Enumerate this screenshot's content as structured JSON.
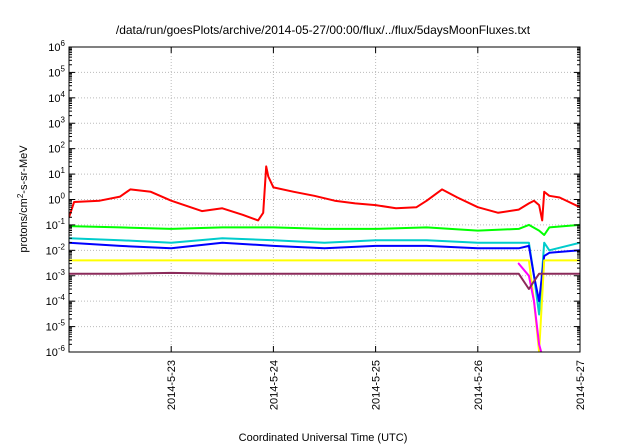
{
  "chart_data": {
    "type": "line",
    "title": "/data/run/goesPlots/archive/2014-05-27/00:00/flux/../flux/5daysMoonFluxes.txt",
    "xlabel": "Coordinated Universal Time (UTC)",
    "ylabel_parts": [
      "protons/cm",
      "2",
      "-s-sr-MeV"
    ],
    "y_scale": "log",
    "ylim": [
      1e-06,
      1000000.0
    ],
    "xlim": [
      "2014-05-22 00:00",
      "2014-05-27 00:00"
    ],
    "x_ticks": [
      "2014-5-23",
      "2014-5-24",
      "2014-5-25",
      "2014-5-26",
      "2014-5-27"
    ],
    "y_ticks": [
      {
        "base": "10",
        "exp": "-6"
      },
      {
        "base": "10",
        "exp": "-5"
      },
      {
        "base": "10",
        "exp": "-4"
      },
      {
        "base": "10",
        "exp": "-3"
      },
      {
        "base": "10",
        "exp": "-2"
      },
      {
        "base": "10",
        "exp": "-1"
      },
      {
        "base": "10",
        "exp": "0"
      },
      {
        "base": "10",
        "exp": "1"
      },
      {
        "base": "10",
        "exp": "2"
      },
      {
        "base": "10",
        "exp": "3"
      },
      {
        "base": "10",
        "exp": "4"
      },
      {
        "base": "10",
        "exp": "5"
      },
      {
        "base": "10",
        "exp": "6"
      }
    ],
    "grid": true,
    "series": [
      {
        "color": "#ff0000",
        "x": [
          0.0,
          0.05,
          0.3,
          0.5,
          0.6,
          0.8,
          1.0,
          1.3,
          1.5,
          1.7,
          1.85,
          1.9,
          1.93,
          1.95,
          2.0,
          2.2,
          2.4,
          2.6,
          2.8,
          3.0,
          3.2,
          3.4,
          3.5,
          3.65,
          3.8,
          4.0,
          4.2,
          4.4,
          4.5,
          4.55,
          4.6,
          4.63,
          4.65,
          4.7,
          4.8,
          5.0
        ],
        "y": [
          0.2,
          0.8,
          0.9,
          1.3,
          2.5,
          2.0,
          0.9,
          0.35,
          0.45,
          0.25,
          0.15,
          0.3,
          20,
          8,
          3.0,
          2.0,
          1.4,
          0.9,
          0.7,
          0.6,
          0.45,
          0.5,
          0.9,
          2.5,
          1.2,
          0.5,
          0.3,
          0.4,
          0.7,
          0.9,
          0.6,
          0.15,
          2.0,
          1.4,
          1.2,
          0.5
        ]
      },
      {
        "color": "#00ff00",
        "x": [
          0.0,
          0.5,
          1.0,
          1.5,
          2.0,
          2.5,
          3.0,
          3.5,
          4.0,
          4.4,
          4.5,
          4.6,
          4.65,
          4.7,
          5.0
        ],
        "y": [
          0.09,
          0.08,
          0.07,
          0.08,
          0.08,
          0.07,
          0.07,
          0.08,
          0.06,
          0.07,
          0.1,
          0.06,
          0.04,
          0.08,
          0.1
        ]
      },
      {
        "color": "#00cccc",
        "x": [
          0.0,
          0.5,
          1.0,
          1.5,
          2.0,
          2.5,
          3.0,
          3.5,
          4.0,
          4.4,
          4.5,
          4.55,
          4.6,
          4.65,
          4.7,
          5.0
        ],
        "y": [
          0.03,
          0.025,
          0.02,
          0.03,
          0.025,
          0.02,
          0.025,
          0.025,
          0.02,
          0.02,
          0.02,
          0.001,
          3e-05,
          0.02,
          0.01,
          0.02
        ]
      },
      {
        "color": "#0000ff",
        "x": [
          0.0,
          0.5,
          1.0,
          1.5,
          2.0,
          2.5,
          3.0,
          3.5,
          4.0,
          4.4,
          4.5,
          4.55,
          4.6,
          4.65,
          4.7,
          5.0
        ],
        "y": [
          0.02,
          0.015,
          0.012,
          0.02,
          0.015,
          0.012,
          0.015,
          0.015,
          0.012,
          0.012,
          0.015,
          0.001,
          0.0001,
          0.006,
          0.008,
          0.01
        ]
      },
      {
        "color": "#ffff00",
        "x": [
          0.0,
          1.0,
          2.0,
          3.0,
          4.0,
          4.4,
          4.5,
          4.55,
          4.6,
          4.65,
          4.7,
          5.0
        ],
        "y": [
          0.004,
          0.004,
          0.004,
          0.004,
          0.004,
          0.004,
          0.004,
          0.0001,
          1e-06,
          0.004,
          0.004,
          0.004
        ]
      },
      {
        "color": "#ff00ff",
        "x": [
          4.4,
          4.5,
          4.55,
          4.6,
          4.62
        ],
        "y": [
          0.003,
          0.001,
          0.0001,
          2e-06,
          1e-06
        ]
      },
      {
        "color": "#8b2a5a",
        "x": [
          0.0,
          0.5,
          1.0,
          1.5,
          2.0,
          2.5,
          3.0,
          3.5,
          4.0,
          4.4,
          4.5,
          4.6,
          4.65,
          5.0
        ],
        "y": [
          0.0012,
          0.0012,
          0.0013,
          0.0012,
          0.0012,
          0.0012,
          0.0012,
          0.0012,
          0.0012,
          0.0012,
          0.0003,
          0.0012,
          0.0012,
          0.0012
        ]
      }
    ]
  }
}
